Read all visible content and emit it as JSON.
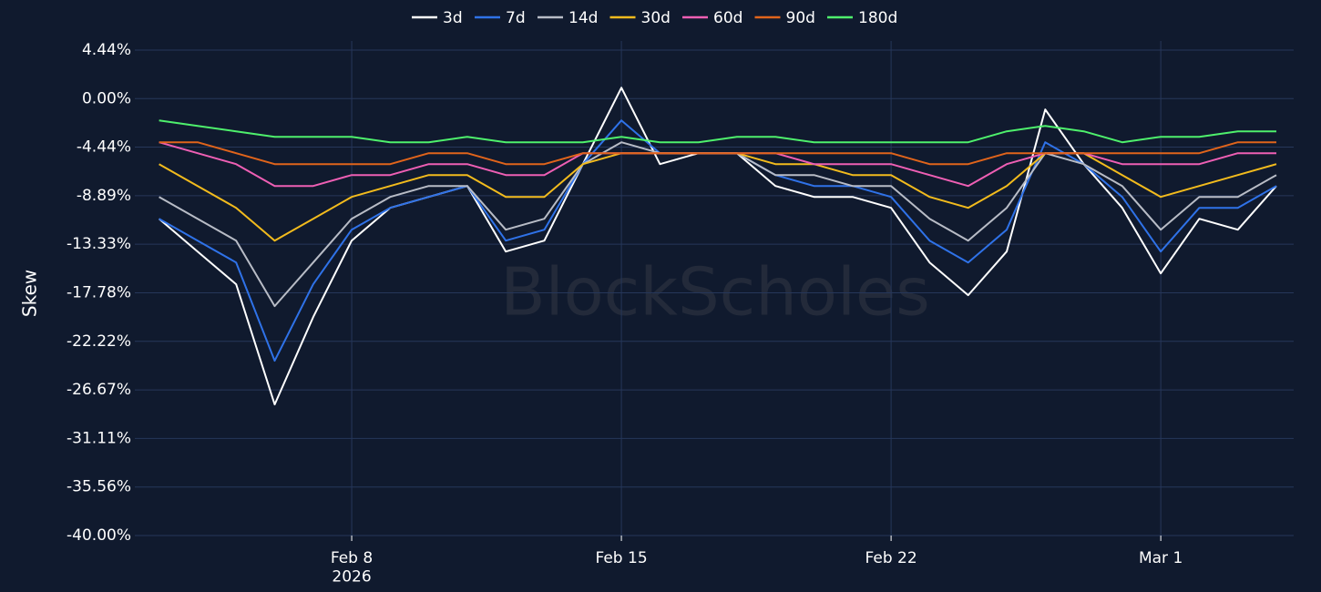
{
  "chart_data": {
    "type": "line",
    "y_label": "Skew",
    "watermark": "BlockScholes",
    "x": [
      "2026-02-03",
      "2026-02-04",
      "2026-02-05",
      "2026-02-06",
      "2026-02-07",
      "2026-02-08",
      "2026-02-09",
      "2026-02-10",
      "2026-02-11",
      "2026-02-12",
      "2026-02-13",
      "2026-02-14",
      "2026-02-15",
      "2026-02-16",
      "2026-02-17",
      "2026-02-18",
      "2026-02-19",
      "2026-02-20",
      "2026-02-21",
      "2026-02-22",
      "2026-02-23",
      "2026-02-24",
      "2026-02-25",
      "2026-02-26",
      "2026-02-27",
      "2026-02-28",
      "2026-03-01",
      "2026-03-02",
      "2026-03-03",
      "2026-03-04"
    ],
    "xlim": [
      "2026-02-03",
      "2026-03-04"
    ],
    "xticks": [
      {
        "value": "2026-02-08",
        "label": "Feb 8\n2026"
      },
      {
        "value": "2026-02-15",
        "label": "Feb 15"
      },
      {
        "value": "2026-02-22",
        "label": "Feb 22"
      },
      {
        "value": "2026-03-01",
        "label": "Mar 1"
      }
    ],
    "ylim": [
      -40,
      4.44
    ],
    "yticks": [
      {
        "value": 4.44,
        "label": "4.44%"
      },
      {
        "value": 0,
        "label": "0.00%"
      },
      {
        "value": -4.44,
        "label": "-4.44%"
      },
      {
        "value": -8.89,
        "label": "-8.89%"
      },
      {
        "value": -13.33,
        "label": "-13.33%"
      },
      {
        "value": -17.78,
        "label": "-17.78%"
      },
      {
        "value": -22.22,
        "label": "-22.22%"
      },
      {
        "value": -26.67,
        "label": "-26.67%"
      },
      {
        "value": -31.11,
        "label": "-31.11%"
      },
      {
        "value": -35.56,
        "label": "-35.56%"
      },
      {
        "value": -40,
        "label": "-40.00%"
      }
    ],
    "grid": true,
    "legend": "top",
    "series": [
      {
        "name": "3d",
        "color": "#ffffff",
        "values": [
          -11,
          -14,
          -17,
          -28,
          -20,
          -13,
          -10,
          -9,
          -8,
          -14,
          -13,
          -6,
          1,
          -6,
          -5,
          -5,
          -8,
          -9,
          -9,
          -10,
          -15,
          -18,
          -14,
          -1,
          -6,
          -10,
          -16,
          -11,
          -12,
          -8
        ]
      },
      {
        "name": "7d",
        "color": "#2f72e8",
        "values": [
          -11,
          -13,
          -15,
          -24,
          -17,
          -12,
          -10,
          -9,
          -8,
          -13,
          -12,
          -6,
          -2,
          -5,
          -5,
          -5,
          -7,
          -8,
          -8,
          -9,
          -13,
          -15,
          -12,
          -4,
          -6,
          -9,
          -14,
          -10,
          -10,
          -8
        ]
      },
      {
        "name": "14d",
        "color": "#b8bcc6",
        "values": [
          -9,
          -11,
          -13,
          -19,
          -15,
          -11,
          -9,
          -8,
          -8,
          -12,
          -11,
          -6,
          -4,
          -5,
          -5,
          -5,
          -7,
          -7,
          -8,
          -8,
          -11,
          -13,
          -10,
          -5,
          -6,
          -8,
          -12,
          -9,
          -9,
          -7
        ]
      },
      {
        "name": "30d",
        "color": "#f2bb1d",
        "values": [
          -6,
          -8,
          -10,
          -13,
          -11,
          -9,
          -8,
          -7,
          -7,
          -9,
          -9,
          -6,
          -5,
          -5,
          -5,
          -5,
          -6,
          -6,
          -7,
          -7,
          -9,
          -10,
          -8,
          -5,
          -5,
          -7,
          -9,
          -8,
          -7,
          -6
        ]
      },
      {
        "name": "60d",
        "color": "#ee5fb4",
        "values": [
          -4,
          -5,
          -6,
          -8,
          -8,
          -7,
          -7,
          -6,
          -6,
          -7,
          -7,
          -5,
          -5,
          -5,
          -5,
          -5,
          -5,
          -6,
          -6,
          -6,
          -7,
          -8,
          -6,
          -5,
          -5,
          -6,
          -6,
          -6,
          -5,
          -5
        ]
      },
      {
        "name": "90d",
        "color": "#e0641b",
        "values": [
          -4,
          -4,
          -5,
          -6,
          -6,
          -6,
          -6,
          -5,
          -5,
          -6,
          -6,
          -5,
          -5,
          -5,
          -5,
          -5,
          -5,
          -5,
          -5,
          -5,
          -6,
          -6,
          -5,
          -5,
          -5,
          -5,
          -5,
          -5,
          -4,
          -4
        ]
      },
      {
        "name": "180d",
        "color": "#4ef06c",
        "values": [
          -2,
          -2.5,
          -3,
          -3.5,
          -3.5,
          -3.5,
          -4,
          -4,
          -3.5,
          -4,
          -4,
          -4,
          -3.5,
          -4,
          -4,
          -3.5,
          -3.5,
          -4,
          -4,
          -4,
          -4,
          -4,
          -3,
          -2.5,
          -3,
          -4,
          -3.5,
          -3.5,
          -3,
          -3
        ]
      }
    ]
  }
}
